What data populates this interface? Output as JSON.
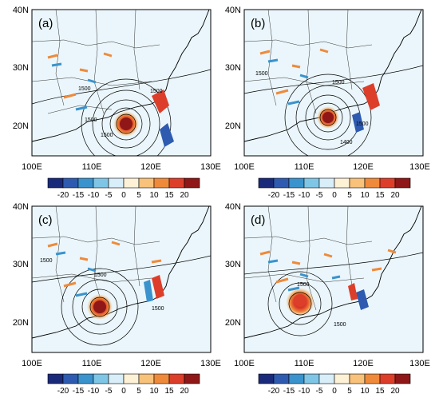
{
  "panels": [
    {
      "label": "(a)",
      "x_ticks": [
        "100E",
        "110E",
        "120E",
        "130E"
      ],
      "y_ticks": [
        "40N",
        "30N",
        "20N"
      ],
      "contour_labels": [
        "1500",
        "1500",
        "1500",
        "1500"
      ],
      "colorbar_labels": [
        "-20",
        "-15",
        "-10",
        "-5",
        "0",
        "5",
        "10",
        "15",
        "20"
      ]
    },
    {
      "label": "(b)",
      "x_ticks": [
        "100E",
        "110E",
        "120E",
        "130E"
      ],
      "y_ticks": [
        "40N",
        "30N",
        "20N"
      ],
      "contour_labels": [
        "1500",
        "1500",
        "1500",
        "1400"
      ],
      "colorbar_labels": [
        "-20",
        "-15",
        "-10",
        "-5",
        "0",
        "5",
        "10",
        "15",
        "20"
      ]
    },
    {
      "label": "(c)",
      "x_ticks": [
        "100E",
        "110E",
        "120E",
        "130E"
      ],
      "y_ticks": [
        "40N",
        "30N",
        "20N"
      ],
      "contour_labels": [
        "1500",
        "1500",
        "1500"
      ],
      "colorbar_labels": [
        "-20",
        "-15",
        "-10",
        "-5",
        "0",
        "5",
        "10",
        "15",
        "20"
      ]
    },
    {
      "label": "(d)",
      "x_ticks": [
        "100E",
        "110E",
        "120E",
        "130E"
      ],
      "y_ticks": [
        "40N",
        "30N",
        "20N"
      ],
      "contour_labels": [
        "1500",
        "1500"
      ],
      "colorbar_labels": [
        "-20",
        "-15",
        "-10",
        "-5",
        "0",
        "5",
        "10",
        "15",
        "20"
      ]
    }
  ],
  "colorbar_colors": [
    "#1a2a7a",
    "#2e5bb0",
    "#3a93cc",
    "#7fc6e6",
    "#d8eef8",
    "#fdf1d6",
    "#f8c27a",
    "#ef8a3a",
    "#dc3e2a",
    "#8f1717"
  ]
}
